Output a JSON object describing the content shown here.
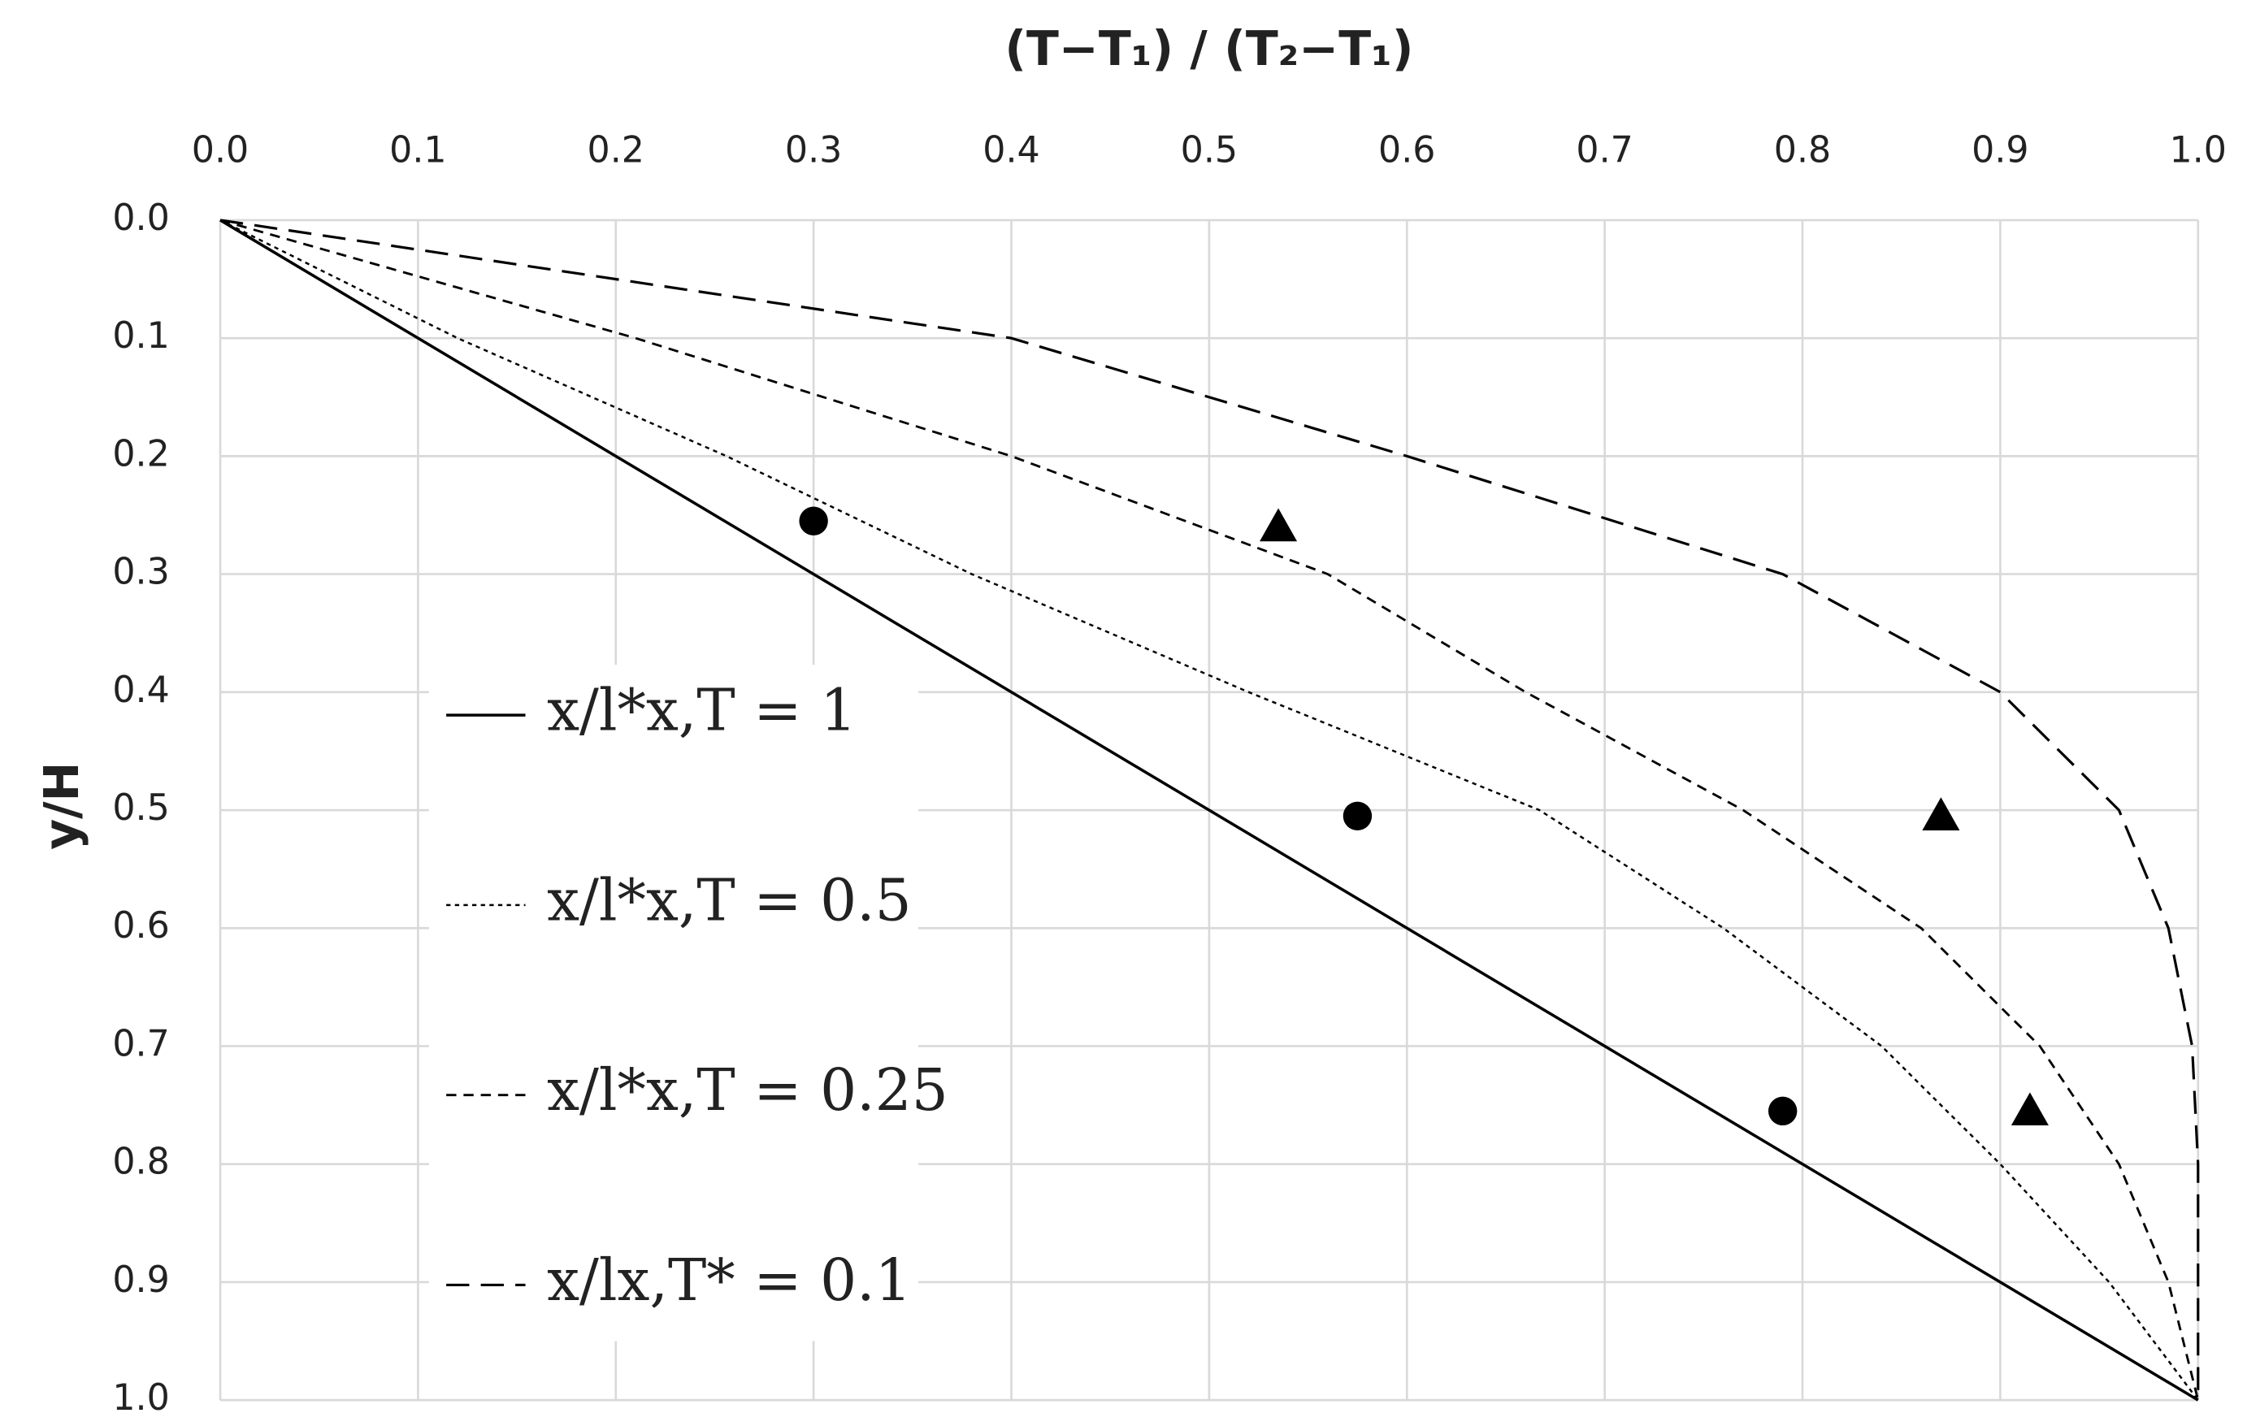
{
  "chart_data": {
    "type": "line",
    "x_label": "(T−T₁) / (T₂−T₁)",
    "y_label": "y/H",
    "xlim": [
      0,
      1
    ],
    "ylim": [
      0,
      1
    ],
    "y_inverted": true,
    "x_axis_position": "top",
    "grid": true,
    "legend": "left",
    "xticks": [
      {
        "value": 0,
        "label": "0.0"
      },
      {
        "value": 0.1,
        "label": "0.1"
      },
      {
        "value": 0.2,
        "label": "0.2"
      },
      {
        "value": 0.3,
        "label": "0.3"
      },
      {
        "value": 0.4,
        "label": "0.4"
      },
      {
        "value": 0.5,
        "label": "0.5"
      },
      {
        "value": 0.6,
        "label": "0.6"
      },
      {
        "value": 0.7,
        "label": "0.7"
      },
      {
        "value": 0.8,
        "label": "0.8"
      },
      {
        "value": 0.9,
        "label": "0.9"
      },
      {
        "value": 1,
        "label": "1.0"
      }
    ],
    "yticks": [
      {
        "value": 0,
        "label": "0.0"
      },
      {
        "value": 0.1,
        "label": "0.1"
      },
      {
        "value": 0.2,
        "label": "0.2"
      },
      {
        "value": 0.3,
        "label": "0.3"
      },
      {
        "value": 0.4,
        "label": "0.4"
      },
      {
        "value": 0.5,
        "label": "0.5"
      },
      {
        "value": 0.6,
        "label": "0.6"
      },
      {
        "value": 0.7,
        "label": "0.7"
      },
      {
        "value": 0.8,
        "label": "0.8"
      },
      {
        "value": 0.9,
        "label": "0.9"
      },
      {
        "value": 1,
        "label": "1.0"
      }
    ],
    "series": [
      {
        "name": "x/l*x,T = 1",
        "color": "#000000",
        "dash": "solid",
        "x": [
          0,
          1
        ],
        "values": [
          0,
          1
        ]
      },
      {
        "name": "x/l*x,T = 0.5",
        "color": "#000000",
        "dash": "dotted",
        "x": [
          0,
          0.12,
          0.256,
          0.38,
          0.52,
          0.667,
          0.76,
          0.84,
          0.9,
          0.955,
          1
        ],
        "values": [
          0,
          0.1,
          0.2,
          0.3,
          0.4,
          0.5,
          0.6,
          0.7,
          0.8,
          0.9,
          1
        ]
      },
      {
        "name": "x/l*x,T = 0.25",
        "color": "#000000",
        "dash": "dashed",
        "x": [
          0,
          0.21,
          0.4,
          0.56,
          0.66,
          0.77,
          0.86,
          0.92,
          0.96,
          0.985,
          1
        ],
        "values": [
          0,
          0.1,
          0.2,
          0.3,
          0.4,
          0.5,
          0.6,
          0.7,
          0.8,
          0.9,
          1
        ]
      },
      {
        "name": "x/lx,T* = 0.1",
        "color": "#000000",
        "dash": "long-dashed",
        "x": [
          0,
          0.4,
          0.6,
          0.79,
          0.9,
          0.96,
          0.985,
          0.997,
          1,
          1,
          1
        ],
        "values": [
          0,
          0.1,
          0.2,
          0.3,
          0.4,
          0.5,
          0.6,
          0.7,
          0.8,
          0.9,
          1
        ]
      },
      {
        "color": "#000000",
        "marker": "circle",
        "x": [
          0.3,
          0.575,
          0.79
        ],
        "values": [
          0.255,
          0.505,
          0.755
        ]
      },
      {
        "color": "#000000",
        "marker": "triangle",
        "x": [
          0.535,
          0.87,
          0.915
        ],
        "values": [
          0.26,
          0.505,
          0.755
        ]
      }
    ]
  }
}
